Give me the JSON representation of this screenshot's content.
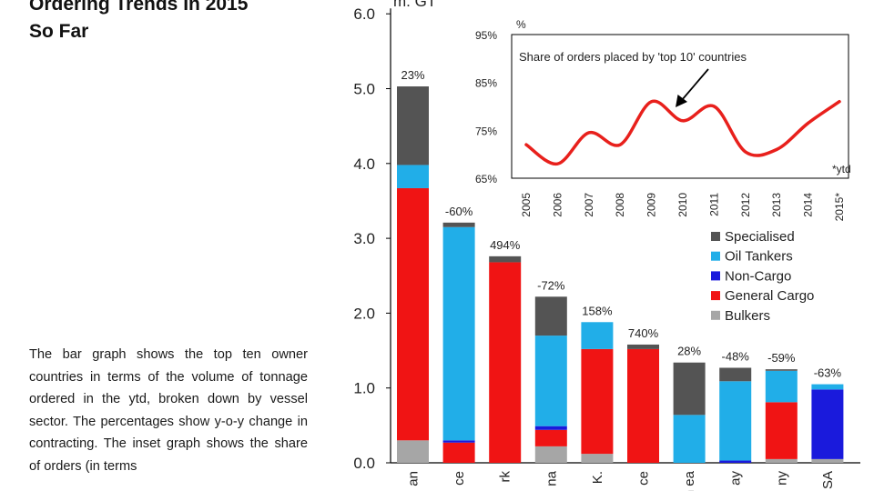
{
  "heading": {
    "line1": "Ordering Trends In 2015",
    "line2": "So Far"
  },
  "description": "The bar graph shows the top ten owner countries in terms of the volume of tonnage ordered in the ytd, broken down by vessel sector. The percentages show y-o-y change in contracting. The inset graph shows the share of orders (in terms",
  "colors": {
    "Specialised": "#545454",
    "Oil Tankers": "#21aee8",
    "Non-Cargo": "#1a1adc",
    "General Cargo": "#f01414",
    "Bulkers": "#a6a6a6"
  },
  "chart_data": [
    {
      "type": "bar",
      "stacked": true,
      "ylabel": "m. GT",
      "ylim": [
        0,
        6
      ],
      "yticks": [
        "0.0",
        "1.0",
        "2.0",
        "3.0",
        "4.0",
        "5.0",
        "6.0"
      ],
      "categories": [
        "an",
        "ce",
        "rk",
        "na",
        "K.",
        "ce",
        "th ea",
        "ay",
        "ny",
        "SA"
      ],
      "change_labels": [
        "23%",
        "-60%",
        "494%",
        "-72%",
        "158%",
        "740%",
        "28%",
        "-48%",
        "-59%",
        "-63%"
      ],
      "series": [
        {
          "name": "Bulkers",
          "values": [
            0.3,
            0.0,
            0.0,
            0.22,
            0.12,
            0.0,
            0.0,
            0.0,
            0.05,
            0.05
          ]
        },
        {
          "name": "General Cargo",
          "values": [
            3.37,
            0.27,
            2.68,
            0.22,
            1.4,
            1.52,
            0.0,
            0.0,
            0.76,
            0.0
          ]
        },
        {
          "name": "Non-Cargo",
          "values": [
            0.0,
            0.03,
            0.0,
            0.05,
            0.0,
            0.0,
            0.0,
            0.03,
            0.0,
            0.93
          ]
        },
        {
          "name": "Oil Tankers",
          "values": [
            0.31,
            2.85,
            0.0,
            1.21,
            0.36,
            0.0,
            0.64,
            1.06,
            0.42,
            0.07
          ]
        },
        {
          "name": "Specialised",
          "values": [
            1.05,
            0.06,
            0.08,
            0.52,
            0.0,
            0.06,
            0.7,
            0.18,
            0.02,
            0.0
          ]
        }
      ],
      "legend": {
        "placement": "right",
        "order": [
          "Specialised",
          "Oil Tankers",
          "Non-Cargo",
          "General Cargo",
          "Bulkers"
        ]
      }
    },
    {
      "type": "line",
      "title": "Share of orders placed by 'top 10' countries",
      "ylabel": "%",
      "ylim": [
        65,
        95
      ],
      "yticks": [
        "65%",
        "75%",
        "85%",
        "95%"
      ],
      "x": [
        "2005",
        "2006",
        "2007",
        "2008",
        "2009",
        "2010",
        "2011",
        "2012",
        "2013",
        "2014",
        "2015*"
      ],
      "values": [
        72,
        68,
        74.5,
        72,
        81,
        77,
        80,
        70.5,
        71,
        76.5,
        81
      ],
      "note": "*ytd",
      "color": "#e8201c"
    }
  ]
}
